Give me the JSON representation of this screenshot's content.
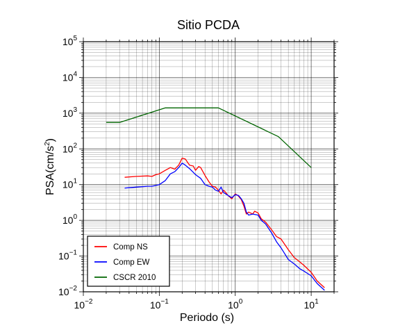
{
  "chart_data": {
    "type": "line",
    "title": "Sitio PCDA",
    "xlabel": "Periodo (s)",
    "ylabel_base": "PSA(cm/s",
    "ylabel_sup": "2",
    "ylabel_end": ")",
    "x_scale": "log",
    "y_scale": "log",
    "xlim": [
      0.01,
      20
    ],
    "ylim": [
      0.01,
      100000
    ],
    "grid": true,
    "legend_position": "bottom-left",
    "x_ticks": [
      {
        "base": "10",
        "exp": "−2",
        "value": 0.01
      },
      {
        "base": "10",
        "exp": "−1",
        "value": 0.1
      },
      {
        "base": "10",
        "exp": "0",
        "value": 1
      },
      {
        "base": "10",
        "exp": "1",
        "value": 10
      }
    ],
    "y_ticks": [
      {
        "base": "10",
        "exp": "−2",
        "value": 0.01
      },
      {
        "base": "10",
        "exp": "−1",
        "value": 0.1
      },
      {
        "base": "10",
        "exp": "0",
        "value": 1
      },
      {
        "base": "10",
        "exp": "1",
        "value": 10
      },
      {
        "base": "10",
        "exp": "2",
        "value": 100
      },
      {
        "base": "10",
        "exp": "3",
        "value": 1000
      },
      {
        "base": "10",
        "exp": "4",
        "value": 10000
      },
      {
        "base": "10",
        "exp": "5",
        "value": 100000
      }
    ],
    "series": [
      {
        "name": "Comp NS",
        "color": "#ff0000",
        "points": [
          [
            0.035,
            16
          ],
          [
            0.05,
            17
          ],
          [
            0.07,
            17.5
          ],
          [
            0.08,
            17
          ],
          [
            0.09,
            19
          ],
          [
            0.1,
            20
          ],
          [
            0.12,
            25
          ],
          [
            0.14,
            30
          ],
          [
            0.16,
            27
          ],
          [
            0.18,
            35
          ],
          [
            0.2,
            55
          ],
          [
            0.22,
            52
          ],
          [
            0.25,
            35
          ],
          [
            0.28,
            33
          ],
          [
            0.3,
            25
          ],
          [
            0.33,
            32
          ],
          [
            0.35,
            30
          ],
          [
            0.4,
            18
          ],
          [
            0.45,
            12
          ],
          [
            0.5,
            9
          ],
          [
            0.55,
            8.5
          ],
          [
            0.6,
            7
          ],
          [
            0.65,
            5.5
          ],
          [
            0.7,
            7
          ],
          [
            0.75,
            6
          ],
          [
            0.8,
            5
          ],
          [
            0.9,
            4
          ],
          [
            1.0,
            5.5
          ],
          [
            1.1,
            4.8
          ],
          [
            1.2,
            3.8
          ],
          [
            1.3,
            2.5
          ],
          [
            1.4,
            1.5
          ],
          [
            1.5,
            1.7
          ],
          [
            1.7,
            1.5
          ],
          [
            1.8,
            1.8
          ],
          [
            2.0,
            1.6
          ],
          [
            2.2,
            1.1
          ],
          [
            2.5,
            0.9
          ],
          [
            3,
            0.55
          ],
          [
            3.5,
            0.35
          ],
          [
            4,
            0.3
          ],
          [
            5,
            0.15
          ],
          [
            6,
            0.09
          ],
          [
            7,
            0.07
          ],
          [
            8,
            0.055
          ],
          [
            10,
            0.035
          ],
          [
            12,
            0.02
          ],
          [
            15,
            0.013
          ]
        ]
      },
      {
        "name": "Comp EW",
        "color": "#0000ff",
        "points": [
          [
            0.035,
            8
          ],
          [
            0.05,
            8.5
          ],
          [
            0.07,
            9
          ],
          [
            0.08,
            9
          ],
          [
            0.1,
            10
          ],
          [
            0.12,
            13
          ],
          [
            0.14,
            20
          ],
          [
            0.16,
            23
          ],
          [
            0.18,
            30
          ],
          [
            0.2,
            40
          ],
          [
            0.22,
            35
          ],
          [
            0.25,
            28
          ],
          [
            0.28,
            22
          ],
          [
            0.3,
            19
          ],
          [
            0.35,
            15
          ],
          [
            0.4,
            10
          ],
          [
            0.45,
            9
          ],
          [
            0.5,
            8.5
          ],
          [
            0.55,
            7
          ],
          [
            0.6,
            6.5
          ],
          [
            0.65,
            8.5
          ],
          [
            0.7,
            6
          ],
          [
            0.8,
            5
          ],
          [
            0.9,
            4.3
          ],
          [
            1.0,
            5.2
          ],
          [
            1.1,
            5
          ],
          [
            1.2,
            4
          ],
          [
            1.3,
            3
          ],
          [
            1.4,
            1.7
          ],
          [
            1.5,
            1.4
          ],
          [
            1.7,
            1.5
          ],
          [
            2.0,
            1.4
          ],
          [
            2.2,
            1.0
          ],
          [
            2.5,
            0.8
          ],
          [
            3,
            0.45
          ],
          [
            3.5,
            0.25
          ],
          [
            4,
            0.17
          ],
          [
            5,
            0.08
          ],
          [
            6,
            0.06
          ],
          [
            7,
            0.045
          ],
          [
            8,
            0.038
          ],
          [
            10,
            0.028
          ],
          [
            12,
            0.017
          ],
          [
            15,
            0.011
          ]
        ]
      },
      {
        "name": "CSCR 2010",
        "color": "#006400",
        "points": [
          [
            0.02,
            550
          ],
          [
            0.03,
            550
          ],
          [
            0.12,
            1400
          ],
          [
            0.6,
            1400
          ],
          [
            3.7,
            220
          ],
          [
            10,
            30
          ]
        ]
      }
    ]
  }
}
